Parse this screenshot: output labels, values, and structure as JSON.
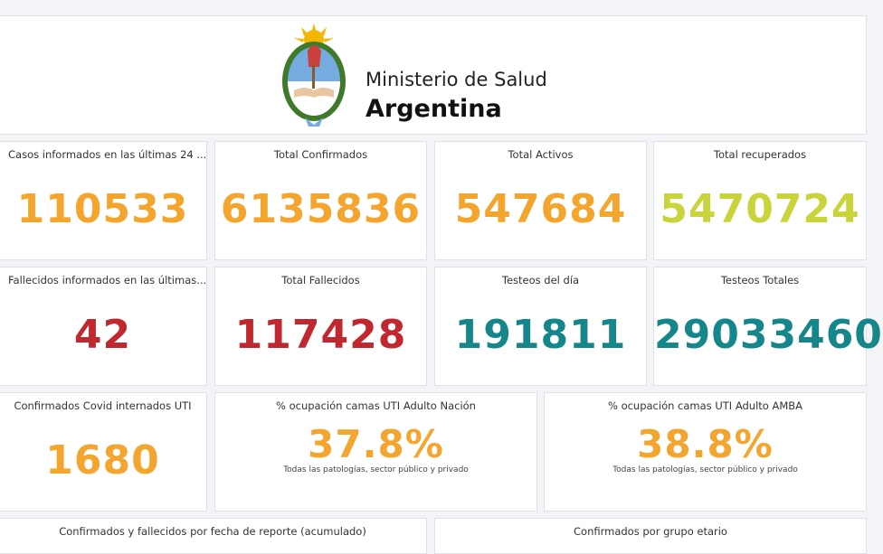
{
  "header": {
    "logo_icon": "coat-of-arms-icon",
    "brand_line1": "Ministerio de Salud",
    "brand_line2": "Argentina"
  },
  "colors": {
    "orange": "#f3a52e",
    "lime": "#c9d43b",
    "red": "#c0272f",
    "teal": "#15868a"
  },
  "kpis_row1": [
    {
      "title": "Casos informados en las últimas 24 ...",
      "value": "110533"
    },
    {
      "title": "Total Confirmados",
      "value": "6135836"
    },
    {
      "title": "Total Activos",
      "value": "547684"
    },
    {
      "title": "Total recuperados",
      "value": "5470724"
    }
  ],
  "kpis_row2": [
    {
      "title": "Fallecidos informados en las últimas...",
      "value": "42"
    },
    {
      "title": "Total Fallecidos",
      "value": "117428"
    },
    {
      "title": "Testeos del día",
      "value": "191811"
    },
    {
      "title": "Testeos Totales",
      "value": "29033460"
    }
  ],
  "row3": {
    "uti": {
      "title": "Confirmados Covid internados UTI",
      "value": "1680"
    },
    "nacion": {
      "title": "% ocupación camas UTI Adulto Nación",
      "value": "37.8%",
      "subtitle": "Todas las patologías, sector público y privado"
    },
    "amba": {
      "title": "% ocupación camas UTI Adulto AMBA",
      "value": "38.8%",
      "subtitle": "Todas las patologías, sector público y privado"
    }
  },
  "row4": {
    "left_title": "Confirmados y fallecidos por fecha de reporte (acumulado)",
    "right_title": "Confirmados por grupo etario"
  }
}
